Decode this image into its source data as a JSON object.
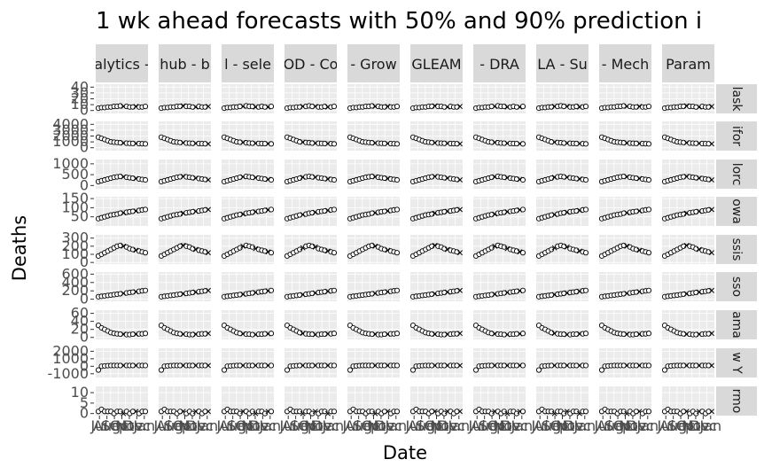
{
  "chart_data": {
    "type": "line",
    "title": "1 wk ahead forecasts with 50% and 90% prediction i",
    "xlabel": "Date",
    "ylabel": "Deaths",
    "facet_columns": [
      "alytics -",
      "hub - b",
      "l - sele",
      "OD - Co",
      "- Grow",
      "GLEAM",
      "- DRA",
      "LA - Su",
      "- Mech",
      "Param"
    ],
    "facet_rows": [
      "lask",
      "ifor",
      "lorc",
      "owa",
      "ssis",
      "sso",
      "ama",
      "w Y",
      "rmo"
    ],
    "row_ranges": [
      [
        -5,
        45
      ],
      [
        -500,
        4500
      ],
      [
        -150,
        1200
      ],
      [
        0,
        160
      ],
      [
        -20,
        340
      ],
      [
        -50,
        650
      ],
      [
        -5,
        68
      ],
      [
        -1500,
        2400
      ],
      [
        -1,
        13
      ]
    ],
    "row_ticks": [
      [
        {
          "v": 0,
          "label": "0"
        },
        {
          "v": 10,
          "label": "10"
        },
        {
          "v": 20,
          "label": "20"
        },
        {
          "v": 30,
          "label": "30"
        },
        {
          "v": 40,
          "label": "40"
        }
      ],
      [
        {
          "v": 0,
          "label": "0"
        },
        {
          "v": 1000,
          "label": "1000"
        },
        {
          "v": 2000,
          "label": "2000"
        },
        {
          "v": 3000,
          "label": "3000"
        },
        {
          "v": 4000,
          "label": "4000"
        }
      ],
      [
        {
          "v": 0,
          "label": "0"
        },
        {
          "v": 500,
          "label": "500"
        },
        {
          "v": 1000,
          "label": "1000"
        }
      ],
      [
        {
          "v": 50,
          "label": "50"
        },
        {
          "v": 100,
          "label": "100"
        },
        {
          "v": 150,
          "label": "150"
        }
      ],
      [
        {
          "v": 0,
          "label": "0"
        },
        {
          "v": 100,
          "label": "100"
        },
        {
          "v": 200,
          "label": "200"
        },
        {
          "v": 300,
          "label": "300"
        }
      ],
      [
        {
          "v": 0,
          "label": "0"
        },
        {
          "v": 200,
          "label": "200"
        },
        {
          "v": 400,
          "label": "400"
        },
        {
          "v": 600,
          "label": "600"
        }
      ],
      [
        {
          "v": 0,
          "label": "0"
        },
        {
          "v": 20,
          "label": "20"
        },
        {
          "v": 40,
          "label": "40"
        },
        {
          "v": 60,
          "label": "60"
        }
      ],
      [
        {
          "v": -1000,
          "label": "-1000"
        },
        {
          "v": 0,
          "label": "0"
        },
        {
          "v": 1000,
          "label": "1000"
        },
        {
          "v": 2000,
          "label": "2000"
        }
      ],
      [
        {
          "v": 0,
          "label": "0"
        },
        {
          "v": 5,
          "label": "5"
        },
        {
          "v": 10,
          "label": "10"
        }
      ]
    ],
    "x_ticks": [
      "Jul",
      "Aug",
      "Sep",
      "Oct",
      "Nov",
      "Dec",
      "Jan"
    ],
    "x_tick_labels_printed": [
      "Jul",
      "Aug",
      "Sep",
      "Oct",
      "Nov",
      "Dec",
      "Jan"
    ],
    "observed_baseline": [
      [
        4,
        5,
        5,
        6,
        6,
        7,
        7,
        8,
        7,
        7,
        6,
        6,
        7,
        6,
        6,
        7
      ],
      [
        1800,
        1600,
        1400,
        1200,
        1000,
        950,
        900,
        850,
        800,
        780,
        760,
        740,
        720,
        700,
        680,
        660
      ],
      [
        180,
        220,
        260,
        300,
        340,
        380,
        400,
        420,
        400,
        380,
        360,
        340,
        320,
        300,
        280,
        260
      ],
      [
        40,
        45,
        50,
        55,
        60,
        62,
        65,
        70,
        72,
        75,
        78,
        80,
        82,
        85,
        88,
        90
      ],
      [
        80,
        100,
        120,
        140,
        160,
        180,
        200,
        210,
        200,
        190,
        170,
        160,
        150,
        140,
        130,
        120
      ],
      [
        60,
        70,
        80,
        90,
        100,
        110,
        120,
        130,
        140,
        150,
        160,
        170,
        180,
        190,
        200,
        210
      ],
      [
        30,
        24,
        20,
        16,
        12,
        10,
        9,
        8,
        8,
        7,
        7,
        8,
        8,
        9,
        9,
        10
      ],
      [
        -500,
        0,
        50,
        80,
        100,
        100,
        100,
        100,
        100,
        100,
        100,
        100,
        100,
        100,
        100,
        100
      ],
      [
        1,
        2,
        1,
        1,
        1,
        0,
        1,
        1,
        0,
        1,
        0,
        1,
        1,
        0,
        1,
        1
      ]
    ]
  }
}
